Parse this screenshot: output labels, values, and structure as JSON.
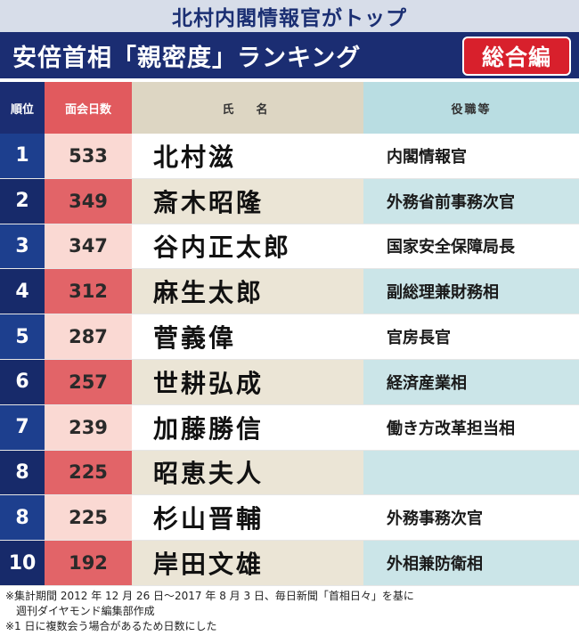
{
  "subheading": "北村内閣情報官がトップ",
  "title": "安倍首相「親密度」ランキング",
  "badge": "総合編",
  "headers": {
    "rank": "順位",
    "days": "面会日数",
    "name": "氏　名",
    "post": "役職等"
  },
  "rows": [
    {
      "rank": "1",
      "days": "533",
      "name": "北村滋",
      "post": "内閣情報官"
    },
    {
      "rank": "2",
      "days": "349",
      "name": "斎木昭隆",
      "post": "外務省前事務次官"
    },
    {
      "rank": "3",
      "days": "347",
      "name": "谷内正太郎",
      "post": "国家安全保障局長"
    },
    {
      "rank": "4",
      "days": "312",
      "name": "麻生太郎",
      "post": "副総理兼財務相"
    },
    {
      "rank": "5",
      "days": "287",
      "name": "菅義偉",
      "post": "官房長官"
    },
    {
      "rank": "6",
      "days": "257",
      "name": "世耕弘成",
      "post": "経済産業相"
    },
    {
      "rank": "7",
      "days": "239",
      "name": "加藤勝信",
      "post": "働き方改革担当相"
    },
    {
      "rank": "8",
      "days": "225",
      "name": "昭恵夫人",
      "post": ""
    },
    {
      "rank": "8",
      "days": "225",
      "name": "杉山晋輔",
      "post": "外務事務次官"
    },
    {
      "rank": "10",
      "days": "192",
      "name": "岸田文雄",
      "post": "外相兼防衛相"
    }
  ],
  "notes": {
    "line1": "※集計期間 2012 年 12 月 26 日〜2017 年 8 月 3 日、毎日新聞「首相日々」を基に",
    "line2": "週刊ダイヤモンド編集部作成",
    "line3": "※1 日に複数会う場合があるため日数にした"
  },
  "colors": {
    "navy": "#1b2d72",
    "red": "#d8202c",
    "salmon": "#e15a5e",
    "beige": "#ddd6c3",
    "teal": "#b9dde2"
  }
}
